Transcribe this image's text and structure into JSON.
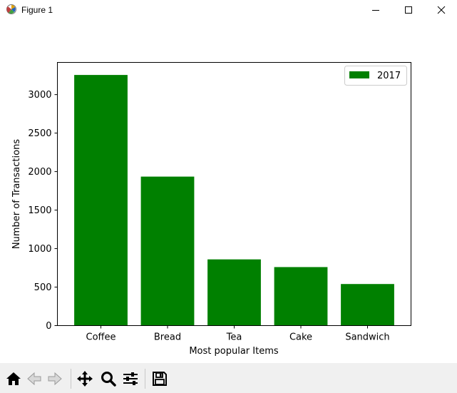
{
  "window": {
    "title": "Figure 1",
    "icon": "matplotlib-icon"
  },
  "toolbar": {
    "buttons": [
      {
        "name": "home-button",
        "icon": "home-icon"
      },
      {
        "name": "back-button",
        "icon": "arrow-left-icon"
      },
      {
        "name": "forward-button",
        "icon": "arrow-right-icon"
      },
      {
        "name": "pan-button",
        "icon": "move-icon"
      },
      {
        "name": "zoom-button",
        "icon": "magnifier-icon"
      },
      {
        "name": "subplots-button",
        "icon": "sliders-icon"
      },
      {
        "name": "save-button",
        "icon": "floppy-disk-icon"
      }
    ]
  },
  "chart_data": {
    "type": "bar",
    "categories": [
      "Coffee",
      "Bread",
      "Tea",
      "Cake",
      "Sandwich"
    ],
    "series": [
      {
        "name": "2017",
        "values": [
          3255,
          1935,
          860,
          760,
          540
        ],
        "color": "#008000"
      }
    ],
    "title": "",
    "xlabel": "Most popular Items",
    "ylabel": "Number of Transactions",
    "ylim": [
      0,
      3418
    ],
    "yticks": [
      0,
      500,
      1000,
      1500,
      2000,
      2500,
      3000
    ],
    "legend": {
      "placement": "top-right",
      "label": "2017"
    },
    "grid": false
  }
}
